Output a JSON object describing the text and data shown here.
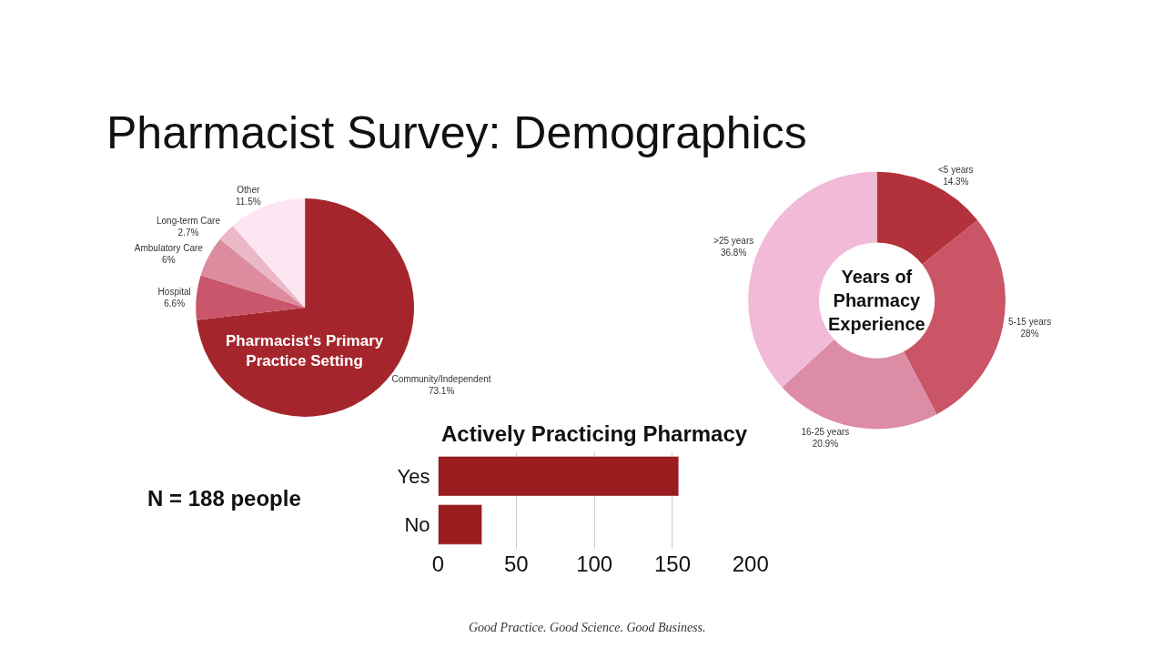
{
  "chart_data": [
    {
      "type": "other",
      "title": "Pharmacist Survey: Demographics",
      "annotations": [
        "N = 188 people",
        "Good Practice. Good Science. Good Business."
      ]
    },
    {
      "type": "pie",
      "title": "Pharmacist's Primary Practice Setting",
      "categories": [
        "Community/Independent",
        "Hospital",
        "Ambulatory Care",
        "Long-term Care",
        "Other"
      ],
      "values": [
        73.1,
        6.6,
        6,
        2.7,
        11.5
      ],
      "value_labels": [
        "73.1%",
        "6.6%",
        "6%",
        "2.7%",
        "11.5%"
      ],
      "colors": [
        "#a4262c",
        "#c9566a",
        "#dc8c9e",
        "#ebb8c8",
        "#fde6f2"
      ]
    },
    {
      "type": "donut",
      "title": "Years of Pharmacy Experience",
      "categories": [
        "<5 years",
        "5-15 years",
        "16-25 years",
        ">25 years"
      ],
      "values": [
        14.3,
        28,
        20.9,
        36.8
      ],
      "value_labels": [
        "14.3%",
        "28%",
        "20.9%",
        "36.8%"
      ],
      "colors": [
        "#b3313a",
        "#c95566",
        "#dd8ca5",
        "#f1bad6"
      ]
    },
    {
      "type": "bar",
      "orientation": "horizontal",
      "title": "Actively Practicing Pharmacy",
      "categories": [
        "Yes",
        "No"
      ],
      "values": [
        154,
        28
      ],
      "color": "#9b1c1f",
      "xlim": [
        0,
        200
      ],
      "xticks": [
        0,
        50,
        100,
        150,
        200
      ],
      "grid": "x"
    }
  ]
}
